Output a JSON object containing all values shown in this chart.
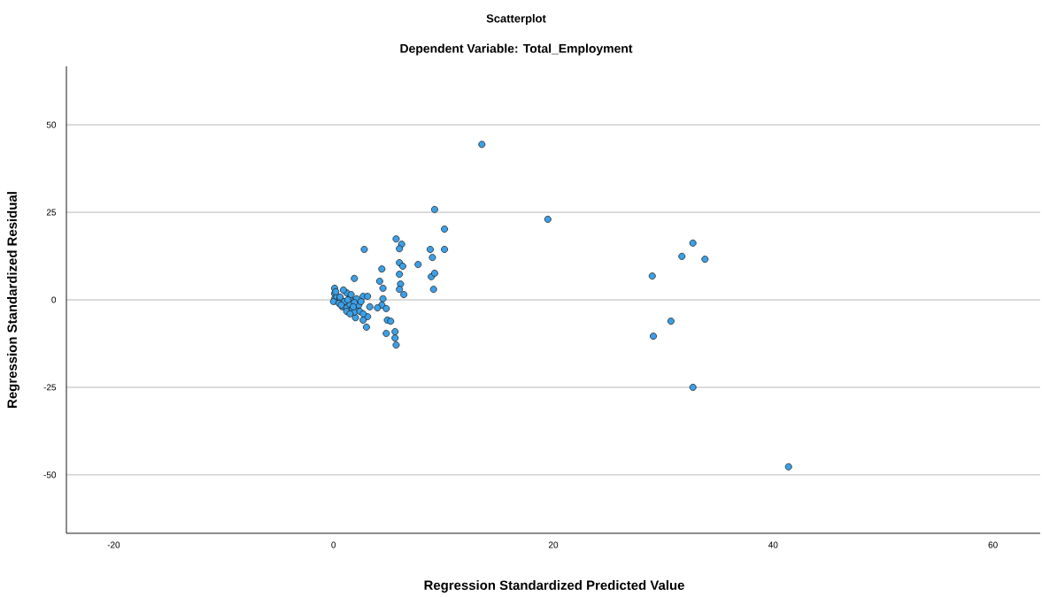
{
  "chart_data": {
    "type": "scatter",
    "title": "Scatterplot",
    "subtitle": "Dependent Variable: Total_Employment",
    "xlabel": "Regression Standardized Predicted Value",
    "ylabel": "Regression Standardized Residual",
    "xlim": [
      -24.3,
      64.3
    ],
    "ylim": [
      -66.7,
      66.7
    ],
    "xticks": [
      -20,
      0,
      20,
      40,
      60
    ],
    "yticks": [
      -50,
      -25,
      0,
      25,
      50
    ],
    "grid": "y",
    "marker": "circle",
    "series": [
      {
        "color": "#3aa0e8",
        "x": [
          13.5,
          19.5,
          29.0,
          29.1,
          30.7,
          31.7,
          32.7,
          33.8,
          32.7,
          41.4,
          9.2,
          10.1,
          10.1,
          7.7,
          8.8,
          9.0,
          8.9,
          9.2,
          9.1,
          2.8,
          5.7,
          6.2,
          6.0,
          6.0,
          6.3,
          6.0,
          6.1,
          6.0,
          6.4,
          4.4,
          4.2,
          1.9,
          4.5,
          4.5,
          4.4,
          4.0,
          4.8,
          4.9,
          5.2,
          4.8,
          5.6,
          5.6,
          5.7,
          3.3,
          3.1,
          3.0,
          2.7,
          2.7,
          3.1,
          2.1,
          2.0,
          0.1,
          0.1,
          0.1,
          0.0,
          0.3,
          0.6,
          1.0,
          0.5,
          0.8,
          1.2,
          1.2,
          1.5,
          1.5,
          1.7,
          1.9,
          2.1,
          1.6,
          0.9,
          1.2,
          2.3,
          2.5,
          2.4,
          1.5,
          1.9,
          2.7,
          0.6,
          0.2,
          0.7,
          1.8,
          1.3
        ],
        "values": [
          44.4,
          23.0,
          6.8,
          -10.4,
          -6.1,
          12.4,
          16.2,
          11.6,
          -25.0,
          -47.7,
          25.8,
          20.2,
          14.4,
          10.1,
          14.4,
          12.1,
          6.6,
          7.6,
          3.0,
          14.4,
          17.4,
          15.9,
          14.6,
          10.6,
          9.6,
          7.3,
          4.5,
          3.0,
          1.5,
          8.8,
          5.3,
          6.1,
          3.3,
          0.3,
          -1.5,
          -2.3,
          -2.5,
          -5.8,
          -6.1,
          -9.6,
          -9.1,
          -10.9,
          -12.9,
          -2.0,
          -4.8,
          -7.8,
          -5.8,
          1.0,
          1.0,
          -2.3,
          -5.1,
          3.3,
          1.8,
          0.3,
          -0.5,
          1.0,
          0.5,
          -0.5,
          -1.0,
          -2.0,
          -2.3,
          2.0,
          0.5,
          -1.3,
          -2.8,
          -3.5,
          0.3,
          1.5,
          2.8,
          -3.3,
          -1.5,
          -0.5,
          -3.3,
          -4.0,
          -0.8,
          -4.0,
          0.8,
          2.3,
          -1.5,
          -2.0,
          0.0
        ]
      }
    ]
  }
}
